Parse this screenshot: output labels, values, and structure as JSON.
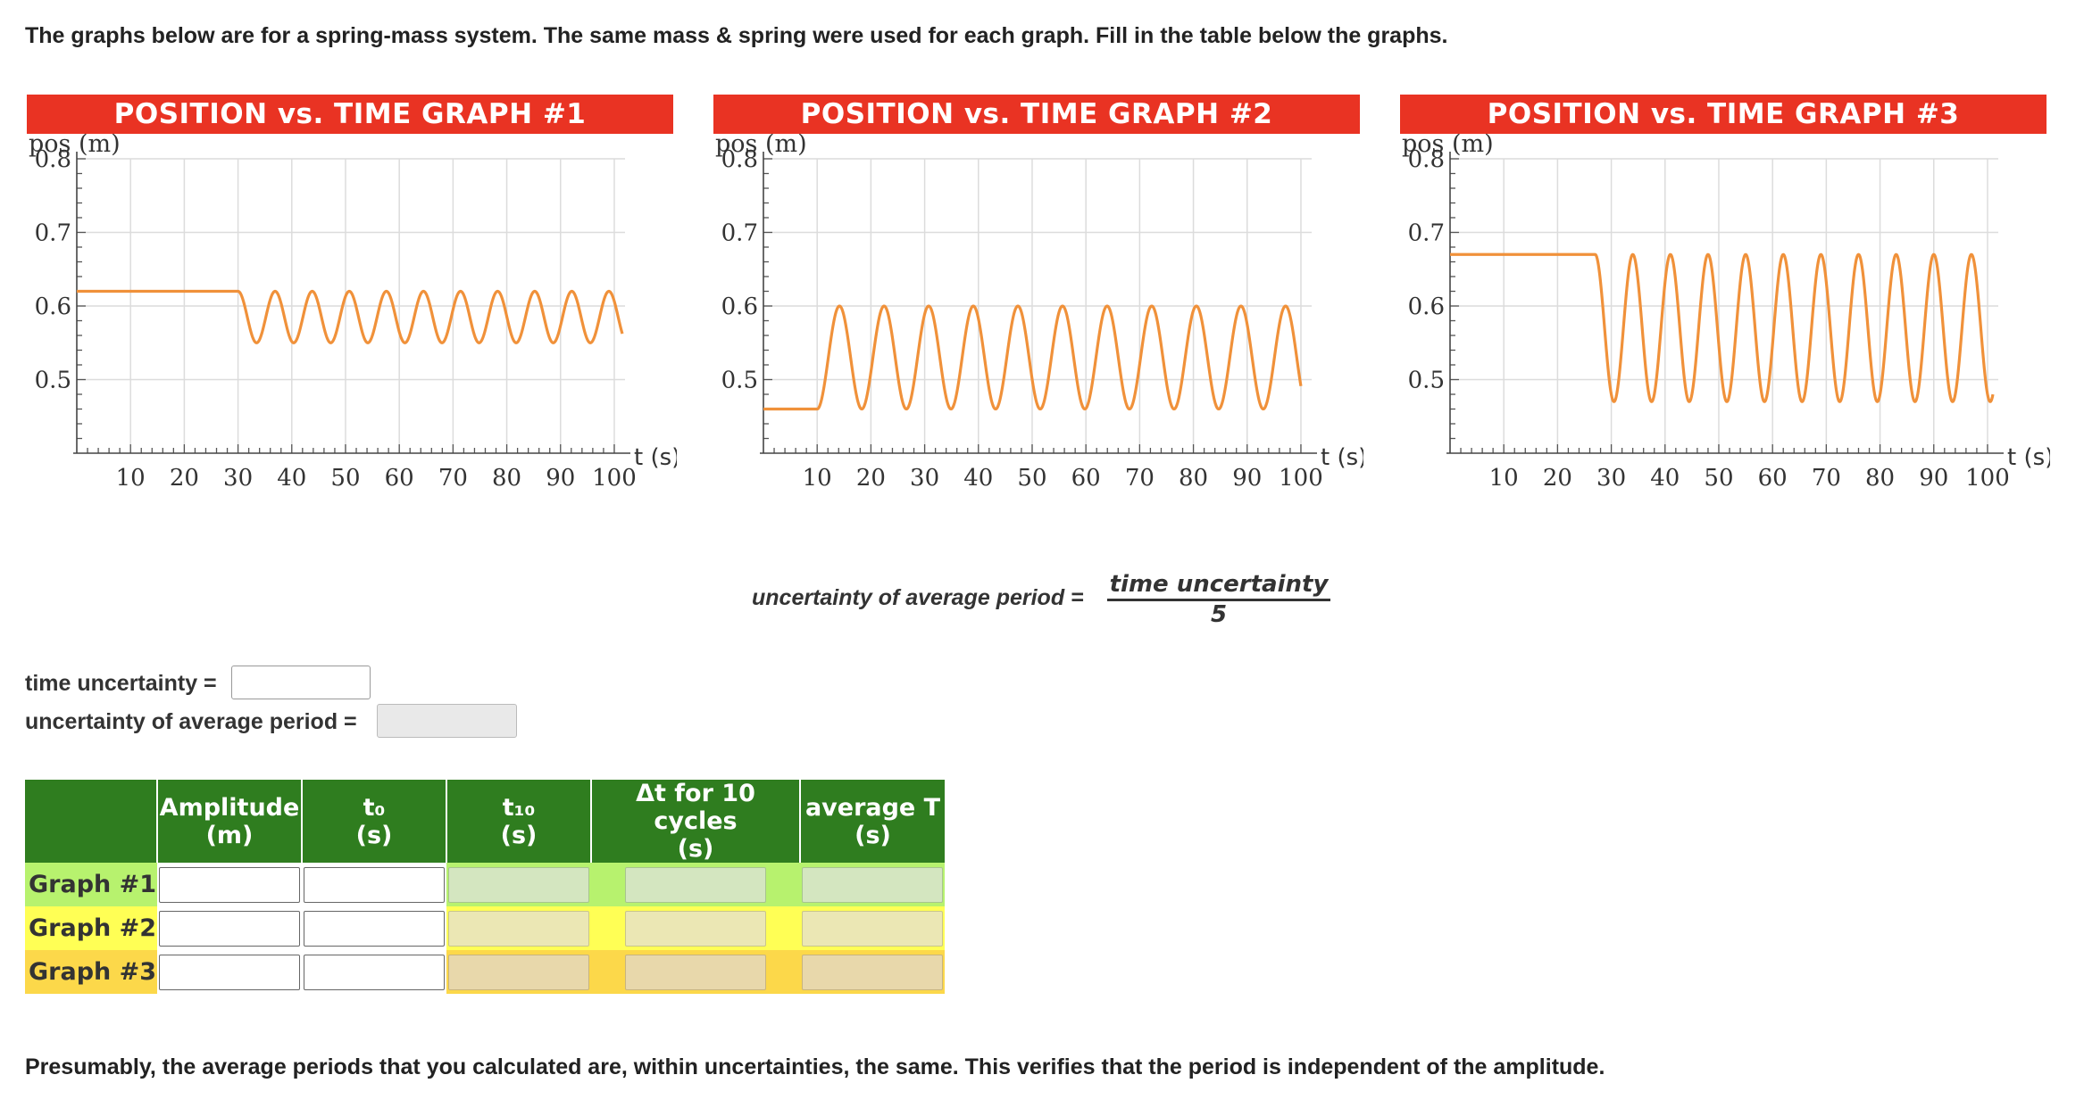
{
  "intro_text": "The graphs below are for a spring-mass system. The same mass & spring were used for each graph. Fill in the table below the graphs.",
  "colors": {
    "title_bg": "#e93323",
    "curve": "#f0913a",
    "header_green": "#2f7d1f",
    "row1_bg": "#b7f26e",
    "row2_bg": "#ffff55",
    "row3_bg": "#fcd84a",
    "row1_box": "#d4e6c0",
    "row2_box": "#ebe7b4",
    "row3_box": "#e8d8ab"
  },
  "chart_data": [
    {
      "type": "line",
      "title": "POSITION vs. TIME GRAPH #1",
      "ylabel": "pos (m)",
      "xlabel": "t (s)",
      "xlim": [
        0,
        102
      ],
      "ylim": [
        0.4,
        0.8
      ],
      "grid": true,
      "xticks": [
        10,
        20,
        30,
        40,
        50,
        60,
        70,
        80,
        90,
        100
      ],
      "yticks": [
        0.5,
        0.6,
        0.7,
        0.8
      ],
      "signal": {
        "equilibrium": 0.585,
        "amplitude": 0.035,
        "t0": 30,
        "period": 6.9,
        "t_end": 101.5,
        "start_phase": "top"
      }
    },
    {
      "type": "line",
      "title": "POSITION vs. TIME GRAPH #2",
      "ylabel": "pos (m)",
      "xlabel": "t (s)",
      "xlim": [
        0,
        102
      ],
      "ylim": [
        0.4,
        0.8
      ],
      "grid": true,
      "xticks": [
        10,
        20,
        30,
        40,
        50,
        60,
        70,
        80,
        90,
        100
      ],
      "yticks": [
        0.5,
        0.6,
        0.7,
        0.8
      ],
      "signal": {
        "equilibrium": 0.53,
        "amplitude": 0.07,
        "t0": 10,
        "period": 8.3,
        "t_end": 100,
        "start_phase": "bottom"
      }
    },
    {
      "type": "line",
      "title": "POSITION vs. TIME GRAPH #3",
      "ylabel": "pos (m)",
      "xlabel": "t (s)",
      "xlim": [
        0,
        102
      ],
      "ylim": [
        0.4,
        0.8
      ],
      "grid": true,
      "xticks": [
        10,
        20,
        30,
        40,
        50,
        60,
        70,
        80,
        90,
        100
      ],
      "yticks": [
        0.5,
        0.6,
        0.7,
        0.8
      ],
      "signal": {
        "equilibrium": 0.57,
        "amplitude": 0.1,
        "t0": 27,
        "period": 7.0,
        "t_end": 101,
        "start_phase": "top"
      }
    }
  ],
  "formula": {
    "lhs": "uncertainty of average period =",
    "numerator": "time uncertainty",
    "denominator": "5"
  },
  "uncertainty": {
    "time_label": "time uncertainty =",
    "time_value": "",
    "period_label": "uncertainty of average period =",
    "period_value": ""
  },
  "table": {
    "headers": [
      {
        "line1": "",
        "line2": ""
      },
      {
        "line1": "Amplitude",
        "line2": "(m)"
      },
      {
        "line1": "t₀",
        "line2": "(s)"
      },
      {
        "line1": "t₁₀",
        "line2": "(s)"
      },
      {
        "line1": "Δt for 10 cycles",
        "line2": "(s)"
      },
      {
        "line1": "average T",
        "line2": "(s)"
      }
    ],
    "rows": [
      {
        "label": "Graph #1",
        "values": [
          "",
          "",
          "",
          "",
          ""
        ]
      },
      {
        "label": "Graph #2",
        "values": [
          "",
          "",
          "",
          "",
          ""
        ]
      },
      {
        "label": "Graph #3",
        "values": [
          "",
          "",
          "",
          "",
          ""
        ]
      }
    ]
  },
  "closing_text": "Presumably, the average periods that you calculated are, within uncertainties, the same. This verifies that the period is independent of the amplitude."
}
